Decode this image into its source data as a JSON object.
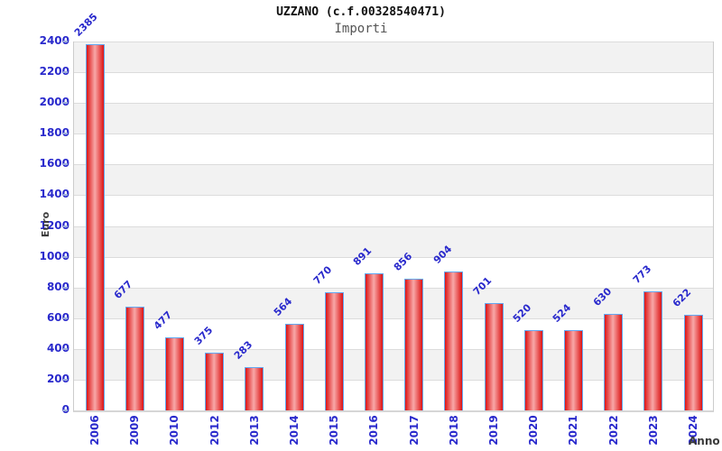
{
  "chart_data": {
    "type": "bar",
    "title": "UZZANO (c.f.00328540471)",
    "subtitle": "Importi",
    "xlabel": "Anno",
    "ylabel": "Euro",
    "categories": [
      "2006",
      "2009",
      "2010",
      "2012",
      "2013",
      "2014",
      "2015",
      "2016",
      "2017",
      "2018",
      "2019",
      "2020",
      "2021",
      "2022",
      "2023",
      "2024"
    ],
    "values": [
      2385,
      677,
      477,
      375,
      283,
      564,
      770,
      891,
      856,
      904,
      701,
      520,
      524,
      630,
      773,
      622
    ],
    "ylim": [
      0,
      2400
    ],
    "ytick_step": 200,
    "yticks": [
      0,
      200,
      400,
      600,
      800,
      1000,
      1200,
      1400,
      1600,
      1800,
      2000,
      2200,
      2400
    ],
    "grid": "horizontal gridlines with alternating gray/white bands",
    "legend": "none",
    "bar_value_labels": "rotated 45 degrees above each bar",
    "xtick_label_rotation": "vertical (bottom to top)",
    "colors": {
      "bar_fill_edge": "#dd1515",
      "bar_fill_mid": "#f8a8a8",
      "bar_border": "#63a8f2",
      "label_blue": "#2929cc",
      "band_gray": "#f2f2f2",
      "band_white": "#ffffff",
      "grid_line": "#dcdcdc",
      "axis_line": "#cccccc",
      "title_color": "#111111",
      "subtitle_color": "#555555",
      "axis_title_color": "#3a3a3a",
      "tick_mark": "#9daed9"
    }
  }
}
